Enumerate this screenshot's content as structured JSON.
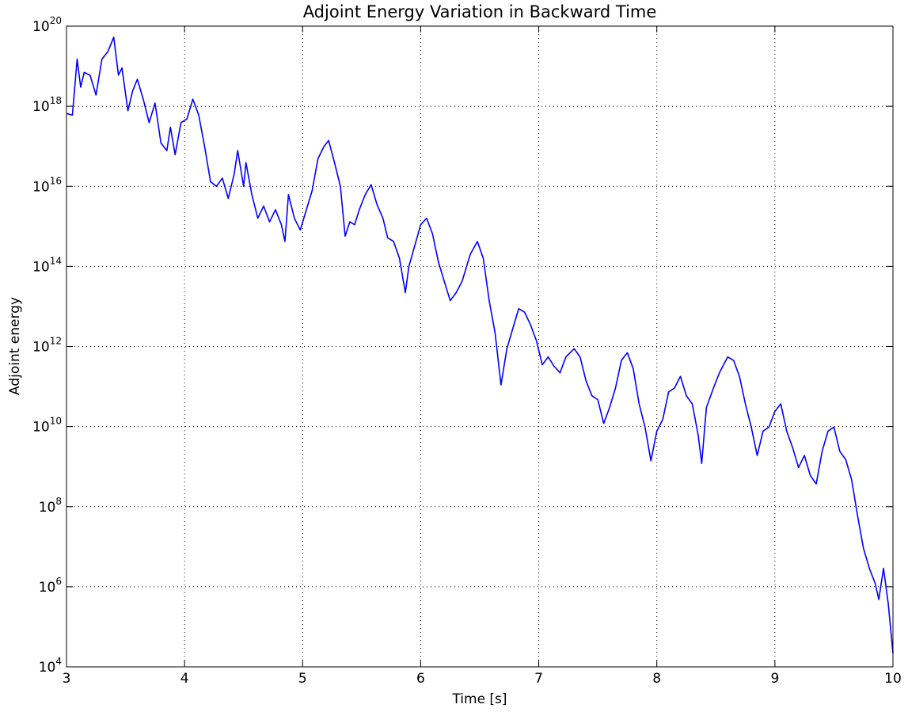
{
  "chart_data": {
    "type": "line",
    "title": "Adjoint Energy Variation in Backward Time",
    "xlabel": "Time [s]",
    "ylabel": "Adjoint energy",
    "yscale": "log",
    "grid": true,
    "xlim": [
      3,
      10
    ],
    "xticks": [
      3,
      4,
      5,
      6,
      7,
      8,
      9,
      10
    ],
    "ylim": [
      10000.0,
      1e+20
    ],
    "yticks": [
      {
        "value": 10000.0,
        "label": "10^4"
      },
      {
        "value": 1000000.0,
        "label": "10^6"
      },
      {
        "value": 100000000.0,
        "label": "10^8"
      },
      {
        "value": 10000000000.0,
        "label": "10^10"
      },
      {
        "value": 1000000000000.0,
        "label": "10^12"
      },
      {
        "value": 100000000000000.0,
        "label": "10^14"
      },
      {
        "value": 1e+16,
        "label": "10^16"
      },
      {
        "value": 1e+18,
        "label": "10^18"
      },
      {
        "value": 1e+20,
        "label": "10^20"
      }
    ],
    "x": [
      3.0,
      3.05,
      3.09,
      3.12,
      3.15,
      3.2,
      3.25,
      3.3,
      3.35,
      3.4,
      3.44,
      3.47,
      3.52,
      3.56,
      3.6,
      3.65,
      3.7,
      3.75,
      3.8,
      3.85,
      3.88,
      3.92,
      3.97,
      4.02,
      4.07,
      4.12,
      4.17,
      4.22,
      4.27,
      4.32,
      4.37,
      4.42,
      4.45,
      4.5,
      4.52,
      4.57,
      4.62,
      4.67,
      4.72,
      4.77,
      4.82,
      4.85,
      4.88,
      4.93,
      4.98,
      5.02,
      5.08,
      5.13,
      5.18,
      5.22,
      5.27,
      5.32,
      5.36,
      5.4,
      5.44,
      5.48,
      5.53,
      5.58,
      5.63,
      5.68,
      5.72,
      5.77,
      5.82,
      5.87,
      5.9,
      5.95,
      6.0,
      6.05,
      6.1,
      6.15,
      6.2,
      6.25,
      6.3,
      6.35,
      6.42,
      6.48,
      6.53,
      6.58,
      6.63,
      6.68,
      6.73,
      6.78,
      6.83,
      6.88,
      6.93,
      6.98,
      7.03,
      7.08,
      7.13,
      7.18,
      7.23,
      7.3,
      7.35,
      7.4,
      7.45,
      7.5,
      7.55,
      7.6,
      7.65,
      7.7,
      7.75,
      7.8,
      7.85,
      7.9,
      7.95,
      8.0,
      8.05,
      8.1,
      8.15,
      8.2,
      8.25,
      8.3,
      8.35,
      8.38,
      8.42,
      8.48,
      8.53,
      8.6,
      8.65,
      8.7,
      8.75,
      8.8,
      8.85,
      8.9,
      8.95,
      9.0,
      9.05,
      9.1,
      9.15,
      9.2,
      9.25,
      9.3,
      9.35,
      9.4,
      9.45,
      9.5,
      9.55,
      9.6,
      9.65,
      9.7,
      9.75,
      9.8,
      9.85,
      9.88,
      9.92,
      9.96,
      10.0
    ],
    "series": [
      {
        "name": "Adjoint energy",
        "color": "#0000ff",
        "values": [
          6.6e+17,
          6e+17,
          1.5e+19,
          3e+18,
          7e+18,
          5.9e+18,
          1.9e+18,
          1.5e+19,
          2.3e+19,
          5.3e+19,
          6e+18,
          9e+18,
          7.7e+17,
          2.4e+18,
          4.7e+18,
          1.5e+18,
          3.9e+17,
          1.2e+18,
          1.2e+17,
          7.8e+16,
          3e+17,
          6.2e+16,
          3.9e+17,
          4.8e+17,
          1.5e+18,
          6e+17,
          9.8e+16,
          1.3e+16,
          1e+16,
          1.6e+16,
          5000000000000000.0,
          2e+16,
          7.8e+16,
          1e+16,
          3.9e+16,
          6200000000000000.0,
          1600000000000000.0,
          3200000000000000.0,
          1300000000000000.0,
          2600000000000000.0,
          1100000000000000.0,
          420000000000000.0,
          6200000000000000.0,
          1600000000000000.0,
          810000000000000.0,
          2000000000000000.0,
          7700000000000000.0,
          4.9e+16,
          9.8e+16,
          1.4e+17,
          3.9e+16,
          1e+16,
          570000000000000.0,
          1300000000000000.0,
          1100000000000000.0,
          2600000000000000.0,
          6200000000000000.0,
          1.1e+16,
          3500000000000000.0,
          1600000000000000.0,
          520000000000000.0,
          420000000000000.0,
          160000000000000.0,
          22000000000000.0,
          100000000000000.0,
          330000000000000.0,
          1100000000000000.0,
          1600000000000000.0,
          650000000000000.0,
          130000000000000.0,
          42000000000000.0,
          14000000000000.0,
          22000000000000.0,
          42000000000000.0,
          200000000000000.0,
          420000000000000.0,
          160000000000000.0,
          14000000000000.0,
          2200000000000.0,
          110000000000.0,
          880000000000.0,
          2800000000000.0,
          8800000000000.0,
          7200000000000.0,
          3500000000000.0,
          1400000000000.0,
          350000000000.0,
          550000000000.0,
          320000000000.0,
          220000000000.0,
          550000000000.0,
          880000000000.0,
          550000000000.0,
          140000000000.0,
          59000000000.0,
          47000000000.0,
          12000000000.0,
          30000000000.0,
          92000000000.0,
          450000000000.0,
          700000000000.0,
          280000000000.0,
          37000000000.0,
          9700000000.0,
          1400000000.0,
          7700000000.0,
          15000000000.0,
          73000000000.0,
          92000000000.0,
          180000000000.0,
          59000000000.0,
          37000000000.0,
          6200000000.0,
          1200000000.0,
          30000000000.0,
          92000000000.0,
          220000000000.0,
          550000000000.0,
          450000000000.0,
          180000000000.0,
          37000000000.0,
          9700000000.0,
          1900000000.0,
          7700000000.0,
          9700000000.0,
          24000000000.0,
          37000000000.0,
          7700000000.0,
          3000000000.0,
          950000000.0,
          1900000000.0,
          600000000.0,
          370000000.0,
          2400000000.0,
          7700000000.0,
          9700000000.0,
          2400000000.0,
          1500000000.0,
          470000000.0,
          60000000.0,
          9200000.0,
          2900000.0,
          1200000.0,
          480000.0,
          2900000.0,
          380000.0,
          22000.0
        ]
      }
    ]
  }
}
